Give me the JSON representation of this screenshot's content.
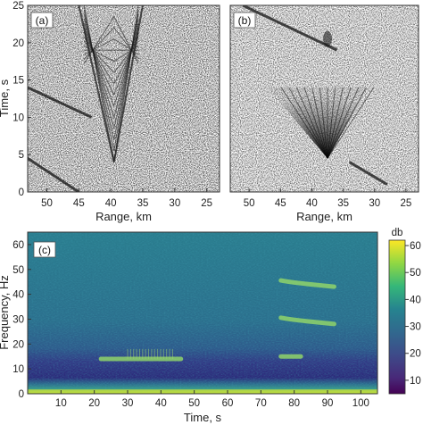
{
  "chart_data": [
    {
      "type": "heatmap",
      "panel_label": "(a)",
      "xlabel": "Range, km",
      "ylabel": "Time, s",
      "xlim": [
        53,
        23
      ],
      "ylim": [
        0,
        25
      ],
      "xticks": [
        50,
        45,
        40,
        35,
        30,
        25
      ],
      "yticks": [
        0,
        5,
        10,
        15,
        20,
        25
      ],
      "colormap": "grayscale",
      "features": [
        {
          "kind": "v-shaped arrival",
          "x_range_km": [
            45,
            35
          ],
          "apex_km": 39.5,
          "apex_time_s": 4,
          "top_time_s": 25
        },
        {
          "kind": "diagonal streak",
          "from": [
            53,
            14
          ],
          "to": [
            43,
            10
          ]
        },
        {
          "kind": "diagonal streak",
          "from": [
            53,
            4.5
          ],
          "to": [
            45,
            0
          ]
        }
      ]
    },
    {
      "type": "heatmap",
      "panel_label": "(b)",
      "xlabel": "Range, km",
      "ylabel": "",
      "xlim": [
        53,
        23
      ],
      "ylim": [
        0,
        25
      ],
      "xticks": [
        50,
        45,
        40,
        35,
        30,
        25
      ],
      "colormap": "grayscale",
      "features": [
        {
          "kind": "v-shaped arrival",
          "x_range_km": [
            47,
            31
          ],
          "apex_km": 37.5,
          "apex_time_s": 4.5,
          "top_time_s": 14
        },
        {
          "kind": "diagonal streak",
          "from": [
            51,
            25
          ],
          "to": [
            36,
            19
          ]
        },
        {
          "kind": "diagonal streak",
          "from": [
            34,
            4
          ],
          "to": [
            28,
            1
          ]
        }
      ]
    },
    {
      "type": "heatmap",
      "panel_label": "(c)",
      "xlabel": "Time, s",
      "ylabel": "Frequency, Hz",
      "xlim": [
        0,
        105
      ],
      "ylim": [
        0,
        65
      ],
      "xticks": [
        10,
        20,
        30,
        40,
        50,
        60,
        70,
        80,
        90,
        100
      ],
      "yticks": [
        0,
        10,
        20,
        30,
        40,
        50,
        60
      ],
      "colormap": "viridis",
      "colorbar": {
        "label": "db",
        "ticks": [
          10,
          20,
          30,
          40,
          50,
          60
        ],
        "range": [
          5,
          62
        ]
      },
      "features": [
        {
          "kind": "tonal band",
          "t_start_s": 22,
          "t_end_s": 46,
          "freq_hz": 14
        },
        {
          "kind": "tonal band",
          "t_start_s": 76,
          "t_end_s": 92,
          "freq_hz": 44.5
        },
        {
          "kind": "tonal band",
          "t_start_s": 76,
          "t_end_s": 92,
          "freq_hz": 29.5
        },
        {
          "kind": "tonal band",
          "t_start_s": 76,
          "t_end_s": 82,
          "freq_hz": 15
        },
        {
          "kind": "low-frequency energy",
          "freq_hz": 1
        }
      ]
    }
  ]
}
